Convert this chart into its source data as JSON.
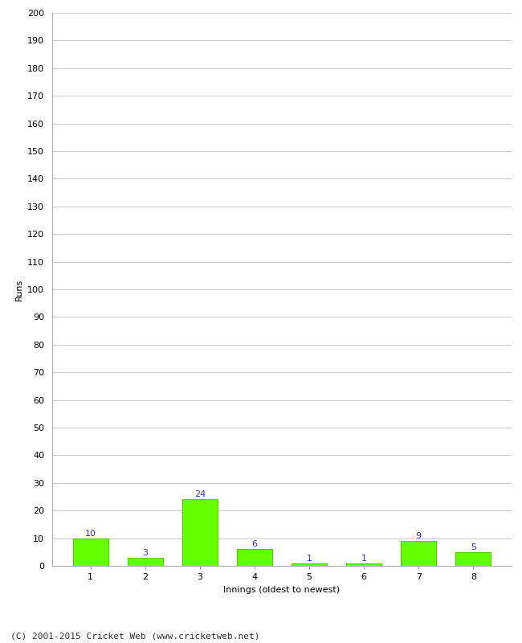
{
  "innings": [
    1,
    2,
    3,
    4,
    5,
    6,
    7,
    8
  ],
  "runs": [
    10,
    3,
    24,
    6,
    1,
    1,
    9,
    5
  ],
  "bar_color": "#66ff00",
  "bar_edge_color": "#55cc00",
  "label_color": "#3333cc",
  "xlabel": "Innings (oldest to newest)",
  "ylabel": "Runs",
  "ylim": [
    0,
    200
  ],
  "yticks": [
    0,
    10,
    20,
    30,
    40,
    50,
    60,
    70,
    80,
    90,
    100,
    110,
    120,
    130,
    140,
    150,
    160,
    170,
    180,
    190,
    200
  ],
  "background_color": "#ffffff",
  "grid_color": "#cccccc",
  "footer": "(C) 2001-2015 Cricket Web (www.cricketweb.net)",
  "label_fontsize": 8,
  "axis_fontsize": 8,
  "ylabel_fontsize": 8,
  "xlabel_fontsize": 8,
  "footer_fontsize": 8
}
